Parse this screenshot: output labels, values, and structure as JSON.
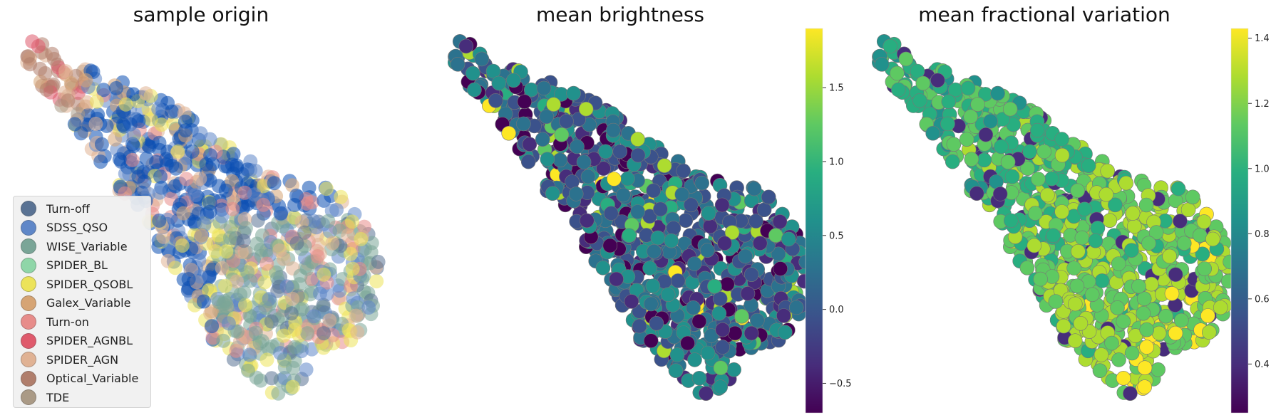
{
  "chart_data": [
    {
      "type": "scatter",
      "title": "sample origin",
      "legend": {
        "placement": "lower-left",
        "entries": [
          {
            "name": "Turn-off",
            "color": "#5a7394"
          },
          {
            "name": "SDSS_QSO",
            "color": "#5f87c8"
          },
          {
            "name": "WISE_Variable",
            "color": "#7aa597"
          },
          {
            "name": "SPIDER_BL",
            "color": "#8fd6a8"
          },
          {
            "name": "SPIDER_QSOBL",
            "color": "#ece35a"
          },
          {
            "name": "Galex_Variable",
            "color": "#d6a474"
          },
          {
            "name": "Turn-on",
            "color": "#e78c8a"
          },
          {
            "name": "SPIDER_AGNBL",
            "color": "#df5a6c"
          },
          {
            "name": "SPIDER_AGN",
            "color": "#e0b294"
          },
          {
            "name": "Optical_Variable",
            "color": "#b07e6c"
          },
          {
            "name": "TDE",
            "color": "#aa9a86"
          }
        ]
      },
      "grid": false,
      "axes_visible": false
    },
    {
      "type": "scatter",
      "title": "mean brightness",
      "colormap": "viridis",
      "colorbar": {
        "min": -0.7,
        "max": 1.9,
        "ticks": [
          "−0.5",
          "0.0",
          "0.5",
          "1.0",
          "1.5"
        ],
        "tick_values": [
          -0.5,
          0.0,
          0.5,
          1.0,
          1.5
        ]
      },
      "grid": false,
      "axes_visible": false
    },
    {
      "type": "scatter",
      "title": "mean fractional variation",
      "colormap": "viridis",
      "colorbar": {
        "min": 0.25,
        "max": 1.43,
        "ticks": [
          "0.4",
          "0.6",
          "0.8",
          "1.0",
          "1.2",
          "1.4"
        ],
        "tick_values": [
          0.4,
          0.6,
          0.8,
          1.0,
          1.2,
          1.4
        ]
      },
      "grid": false,
      "axes_visible": false
    }
  ]
}
